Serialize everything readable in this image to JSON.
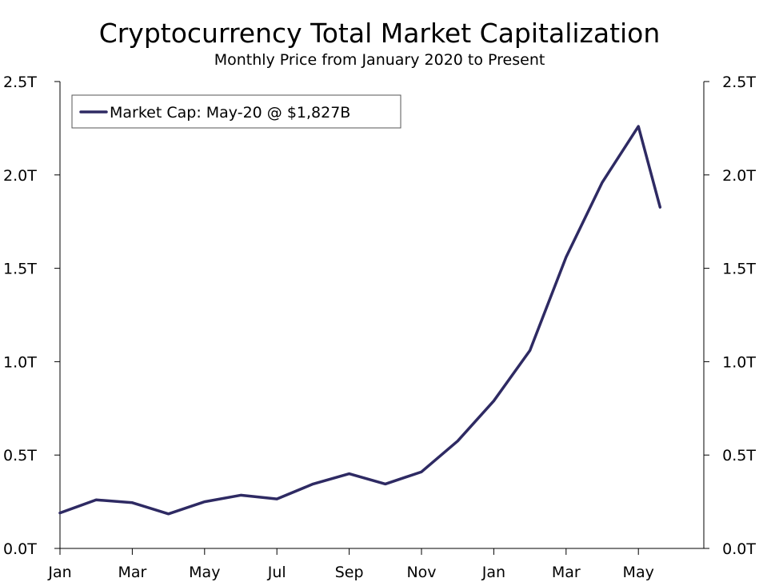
{
  "chart_data": {
    "type": "line",
    "title": "Cryptocurrency Total Market Capitalization",
    "subtitle": "Monthly Price from January 2020 to Present",
    "xlabel": "",
    "ylabel": "",
    "x_tick_labels": [
      "Jan",
      "Mar",
      "May",
      "Jul",
      "Sep",
      "Nov",
      "Jan",
      "Mar",
      "May"
    ],
    "y_tick_labels": [
      "0.0T",
      "0.5T",
      "1.0T",
      "1.5T",
      "2.0T",
      "2.5T"
    ],
    "y_tick_values": [
      0,
      0.5,
      1.0,
      1.5,
      2.0,
      2.5
    ],
    "ylim": [
      0,
      2.5
    ],
    "grid": false,
    "legend_position": "top-left",
    "series": [
      {
        "name": "Market Cap: May-20 @ $1,827B",
        "color": "#2e2a63",
        "x": [
          "2020-01",
          "2020-02",
          "2020-03",
          "2020-04",
          "2020-05",
          "2020-06",
          "2020-07",
          "2020-08",
          "2020-09",
          "2020-10",
          "2020-11",
          "2020-12",
          "2021-01",
          "2021-02",
          "2021-03",
          "2021-04",
          "2021-05",
          "2021-05-20"
        ],
        "values": [
          0.19,
          0.26,
          0.245,
          0.185,
          0.25,
          0.285,
          0.265,
          0.345,
          0.4,
          0.345,
          0.41,
          0.575,
          0.79,
          1.06,
          1.56,
          1.96,
          2.26,
          1.827
        ]
      }
    ],
    "x_month_index": [
      0,
      1,
      2,
      3,
      4,
      5,
      6,
      7,
      8,
      9,
      10,
      11,
      12,
      13,
      14,
      15,
      16,
      16.6
    ]
  }
}
